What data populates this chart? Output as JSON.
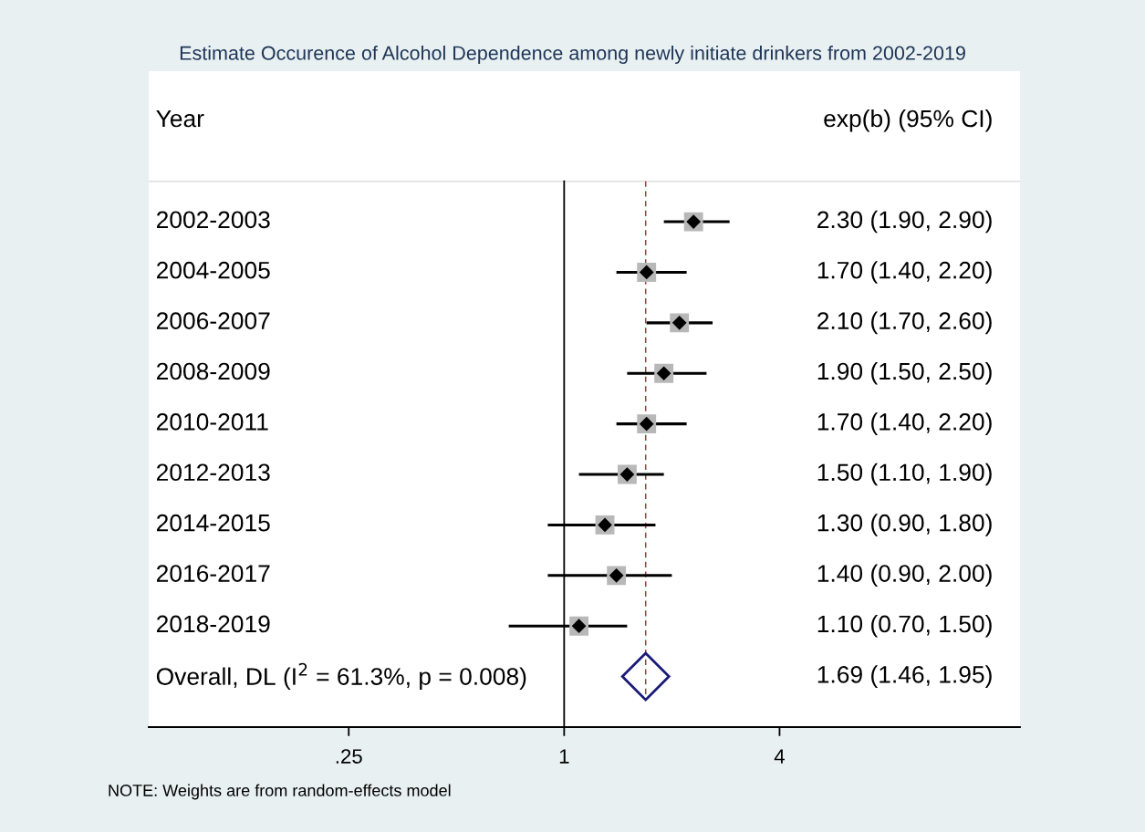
{
  "chart_data": {
    "type": "scatter",
    "orientation": "horizontal",
    "title": "Estimate Occurence of Alcohol Dependence among newly initiate drinkers from 2002-2019",
    "annotations": [
      "Year",
      "exp(b) (95% CI)",
      "NOTE: Weights are from random-effects model"
    ],
    "categories": [
      "2002-2003",
      "2004-2005",
      "2006-2007",
      "2008-2009",
      "2010-2011",
      "2012-2013",
      "2014-2015",
      "2016-2017",
      "2018-2019",
      "Overall, DL (I$^{2}$ = 61.3%, p = 0.008)"
    ],
    "series": [
      {
        "marker": "diamond",
        "color": "#000000",
        "values": [
          2.3,
          1.7,
          2.1,
          1.9,
          1.7,
          1.5,
          1.3,
          1.4,
          1.1,
          null
        ],
        "errors": [
          [
            1.9,
            2.9
          ],
          [
            1.4,
            2.2
          ],
          [
            1.7,
            2.6
          ],
          [
            1.5,
            2.5
          ],
          [
            1.4,
            2.2
          ],
          [
            1.1,
            1.9
          ],
          [
            0.9,
            1.8
          ],
          [
            0.9,
            2.0
          ],
          [
            0.7,
            1.5
          ],
          null
        ]
      },
      {
        "marker": "diamond",
        "color": "#1a1a78",
        "values": [
          null,
          null,
          null,
          null,
          null,
          null,
          null,
          null,
          null,
          1.69
        ]
      }
    ],
    "value_labels": [
      "2.30 (1.90, 2.90)",
      "1.70 (1.40, 2.20)",
      "2.10 (1.70, 2.60)",
      "1.90 (1.50, 2.50)",
      "1.70 (1.40, 2.20)",
      "1.50 (1.10, 1.90)",
      "1.30 (0.90, 1.80)",
      "1.40 (0.90, 2.00)",
      "1.10 (0.70, 1.50)",
      "1.69 (1.46, 1.95)"
    ],
    "log": "x",
    "xlim": [
      0.069,
      18.8
    ],
    "xticks": [
      {
        "value": 0.25,
        "label": ".25"
      },
      {
        "value": 1,
        "label": "1"
      },
      {
        "value": 4,
        "label": "4"
      }
    ],
    "ref_lines": [
      {
        "axis": "x",
        "value": 1,
        "color": "#000000",
        "line_style": "solid"
      },
      {
        "axis": "x",
        "value": 1.69,
        "color": "#a04040",
        "line_style": "dashed"
      }
    ],
    "grid": false,
    "legend": false
  }
}
